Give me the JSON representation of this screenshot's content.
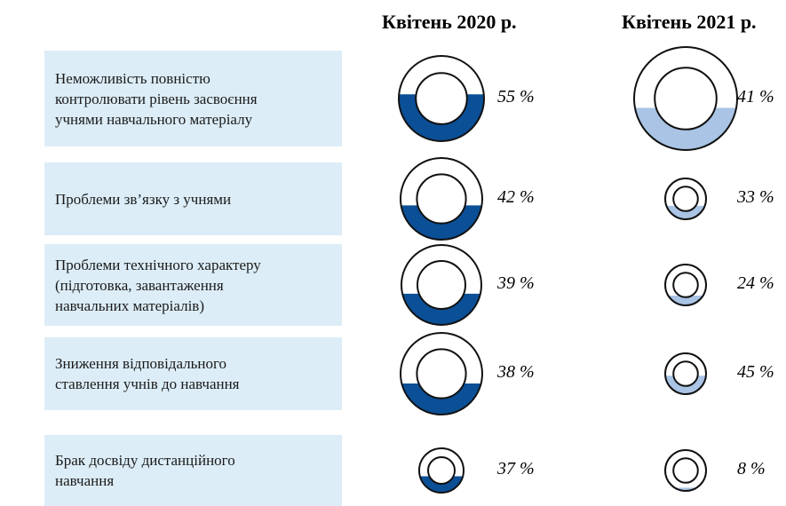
{
  "chart_data": {
    "type": "ring-gauge",
    "categories": [
      "Неможливість повністю\nконтролювати рівень засвоєння\nучнями навчального матеріалу",
      "Проблеми зв’язку з учнями",
      "Проблеми технічного характеру\n(підготовка, завантаження\nнавчальних матеріалів)",
      "Зниження відповідального\nставлення учнів до навчання",
      "Брак досвіду дистанційного\nнавчання"
    ],
    "series": [
      {
        "name": "Квітень 2020 р.",
        "color": "#0b4f96",
        "values": [
          55,
          42,
          39,
          38,
          37
        ],
        "value_labels": [
          "55 %",
          "42 %",
          "39 %",
          "38 %",
          "37 %"
        ]
      },
      {
        "name": "Квітень 2021 р.",
        "color": "#a9c4e4",
        "values": [
          41,
          33,
          24,
          45,
          8
        ],
        "value_labels": [
          "41 %",
          "33 %",
          "24 %",
          "45 %",
          "8 %"
        ]
      }
    ]
  }
}
